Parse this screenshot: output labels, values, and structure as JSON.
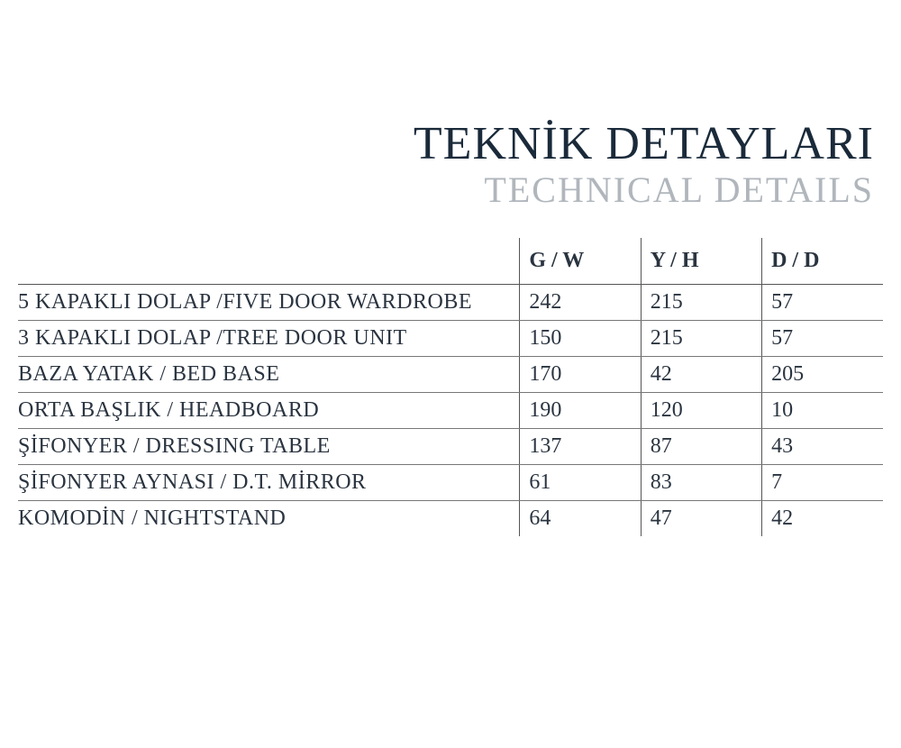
{
  "title": {
    "primary": "TEKNİK DETAYLARI",
    "secondary": "TECHNICAL DETAILS"
  },
  "table": {
    "type": "table",
    "columns": [
      {
        "key": "label",
        "header": ""
      },
      {
        "key": "gw",
        "header": "G / W"
      },
      {
        "key": "yh",
        "header": "Y / H"
      },
      {
        "key": "dd",
        "header": "D / D"
      }
    ],
    "rows": [
      {
        "label": "5 KAPAKLI DOLAP /FIVE DOOR WARDROBE",
        "gw": "242",
        "yh": "215",
        "dd": "57"
      },
      {
        "label": "3 KAPAKLI DOLAP /TREE DOOR UNIT",
        "gw": "150",
        "yh": "215",
        "dd": "57"
      },
      {
        "label": "BAZA YATAK / BED BASE",
        "gw": "170",
        "yh": "42",
        "dd": "205"
      },
      {
        "label": "ORTA BAŞLIK  / HEADBOARD",
        "gw": "190",
        "yh": "120",
        "dd": "10"
      },
      {
        "label": "ŞİFONYER / DRESSING TABLE",
        "gw": "137",
        "yh": "87",
        "dd": "43"
      },
      {
        "label": "ŞİFONYER AYNASI / D.T. MİRROR",
        "gw": "61",
        "yh": "83",
        "dd": "7"
      },
      {
        "label": "KOMODİN / NIGHTSTAND",
        "gw": "64",
        "yh": "47",
        "dd": "42"
      }
    ],
    "styling": {
      "background_color": "#ffffff",
      "text_color": "#2a3440",
      "border_color": "#555555",
      "row_border_color": "#777777",
      "title_primary_color": "#1a2a3a",
      "title_secondary_color": "#b0b6bc",
      "title_primary_fontsize": 52,
      "title_secondary_fontsize": 40,
      "header_fontsize": 26,
      "cell_fontsize": 24,
      "col_widths_pct": [
        58,
        14,
        14,
        14
      ],
      "font_family": "Georgia, Times New Roman, serif"
    }
  }
}
